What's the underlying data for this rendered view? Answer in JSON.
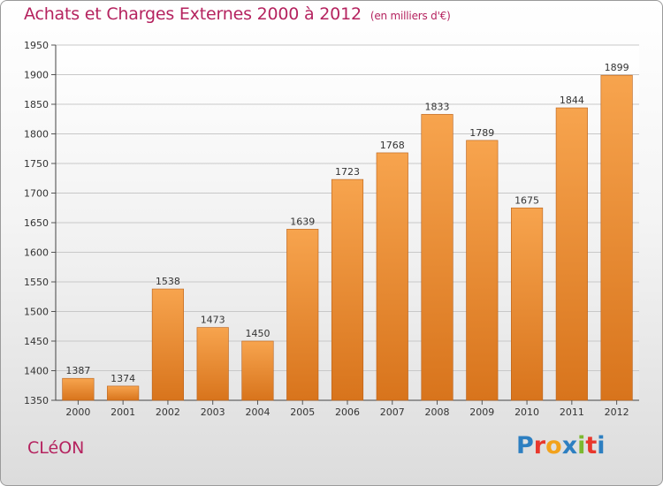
{
  "header": {
    "title": "Achats et Charges Externes 2000 à 2012",
    "subtitle": "(en milliers d'€)"
  },
  "footer": {
    "city": "CLéON",
    "logo_letters": [
      "P",
      "r",
      "o",
      "x",
      "i",
      "t",
      "i"
    ],
    "logo_colors": [
      "#2d7fc1",
      "#e8372c",
      "#f2a21c",
      "#2d7fc1",
      "#7cb82f",
      "#e8372c",
      "#2d7fc1"
    ]
  },
  "chart_data": {
    "type": "bar",
    "categories": [
      "2000",
      "2001",
      "2002",
      "2003",
      "2004",
      "2005",
      "2006",
      "2007",
      "2008",
      "2009",
      "2010",
      "2011",
      "2012"
    ],
    "values": [
      1387,
      1374,
      1538,
      1473,
      1450,
      1639,
      1723,
      1768,
      1833,
      1789,
      1675,
      1844,
      1899
    ],
    "ylim": [
      1350,
      1950
    ],
    "yticks": [
      1350,
      1400,
      1450,
      1500,
      1550,
      1600,
      1650,
      1700,
      1750,
      1800,
      1850,
      1900,
      1950
    ],
    "grid": true,
    "bar_color_top": "#f7a44e",
    "bar_color_bottom": "#d8741c",
    "title": "Achats et Charges Externes 2000 à 2012",
    "xlabel": "",
    "ylabel": ""
  }
}
